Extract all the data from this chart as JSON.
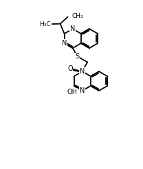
{
  "bg_color": "#ffffff",
  "line_color": "#000000",
  "lw": 1.3,
  "fs": 7.0,
  "fig_w": 2.08,
  "fig_h": 2.46,
  "dpi": 100,
  "xlim": [
    0,
    10.4
  ],
  "ylim": [
    0,
    12.3
  ]
}
